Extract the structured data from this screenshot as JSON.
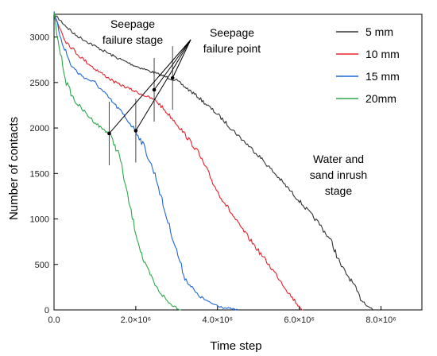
{
  "chart_data": {
    "type": "line",
    "title": "",
    "xlabel": "Time step",
    "ylabel": "Number of contacts",
    "xlim": [
      0,
      9000000
    ],
    "ylim": [
      0,
      3250
    ],
    "x_ticks": [
      {
        "value": 0,
        "label": "0.0"
      },
      {
        "value": 2000000,
        "label": "2.0×10⁶"
      },
      {
        "value": 4000000,
        "label": "4.0×10⁶"
      },
      {
        "value": 6000000,
        "label": "6.0×10⁶"
      },
      {
        "value": 8000000,
        "label": "8.0×10⁶"
      }
    ],
    "y_ticks": [
      {
        "value": 0,
        "label": "0"
      },
      {
        "value": 500,
        "label": "500"
      },
      {
        "value": 1000,
        "label": "1000"
      },
      {
        "value": 1500,
        "label": "1500"
      },
      {
        "value": 2000,
        "label": "2000"
      },
      {
        "value": 2500,
        "label": "2500"
      },
      {
        "value": 3000,
        "label": "3000"
      }
    ],
    "grid": false,
    "legend_position": "top-right",
    "series": [
      {
        "name": "5 mm",
        "color": "#333333",
        "x": [
          0,
          500000,
          1000000,
          1500000,
          2000000,
          2500000,
          3000000,
          3500000,
          4000000,
          4500000,
          5000000,
          5500000,
          6000000,
          6500000,
          6800000,
          7000000,
          7300000,
          7500000,
          7700000,
          7800000
        ],
        "y": [
          3250,
          3030,
          2900,
          2780,
          2680,
          2600,
          2520,
          2350,
          2150,
          1920,
          1700,
          1450,
          1200,
          940,
          740,
          500,
          300,
          120,
          40,
          0
        ]
      },
      {
        "name": "10 mm",
        "color": "#e8202a",
        "x": [
          0,
          300000,
          600000,
          1000000,
          1500000,
          2000000,
          2500000,
          3000000,
          3500000,
          4000000,
          4500000,
          5000000,
          5500000,
          5800000,
          6000000,
          6100000
        ],
        "y": [
          3250,
          2950,
          2800,
          2650,
          2500,
          2400,
          2300,
          2050,
          1750,
          1300,
          950,
          650,
          350,
          150,
          40,
          0
        ]
      },
      {
        "name": "15 mm",
        "color": "#1e66d6",
        "x": [
          0,
          200000,
          400000,
          600000,
          800000,
          1000000,
          1300000,
          1600000,
          2000000,
          2200000,
          2500000,
          2700000,
          3000000,
          3200000,
          3500000,
          3800000,
          4200000,
          4500000
        ],
        "y": [
          3250,
          2950,
          2700,
          2600,
          2540,
          2500,
          2350,
          2200,
          1970,
          1800,
          1450,
          1100,
          650,
          350,
          170,
          80,
          20,
          0
        ]
      },
      {
        "name": "20mm",
        "color": "#2ba84a",
        "x": [
          0,
          100000,
          300000,
          500000,
          800000,
          1100000,
          1350000,
          1600000,
          1800000,
          2000000,
          2200000,
          2500000,
          2800000,
          3100000
        ],
        "y": [
          3250,
          2950,
          2500,
          2300,
          2150,
          2020,
          1940,
          1700,
          1250,
          850,
          520,
          250,
          80,
          0
        ]
      }
    ],
    "failure_points": [
      {
        "series": "5 mm",
        "x": 2900000,
        "y": 2550
      },
      {
        "series": "10 mm",
        "x": 2450000,
        "y": 2420
      },
      {
        "series": "15 mm",
        "x": 2000000,
        "y": 1970
      },
      {
        "series": "20mm",
        "x": 1350000,
        "y": 1940
      }
    ],
    "annotations": {
      "seepage_stage": [
        "Seepage",
        "failure stage"
      ],
      "seepage_point": [
        "Seepage",
        "failure point"
      ],
      "inrush_stage": [
        "Water and",
        "sand inrush",
        "stage"
      ]
    }
  }
}
